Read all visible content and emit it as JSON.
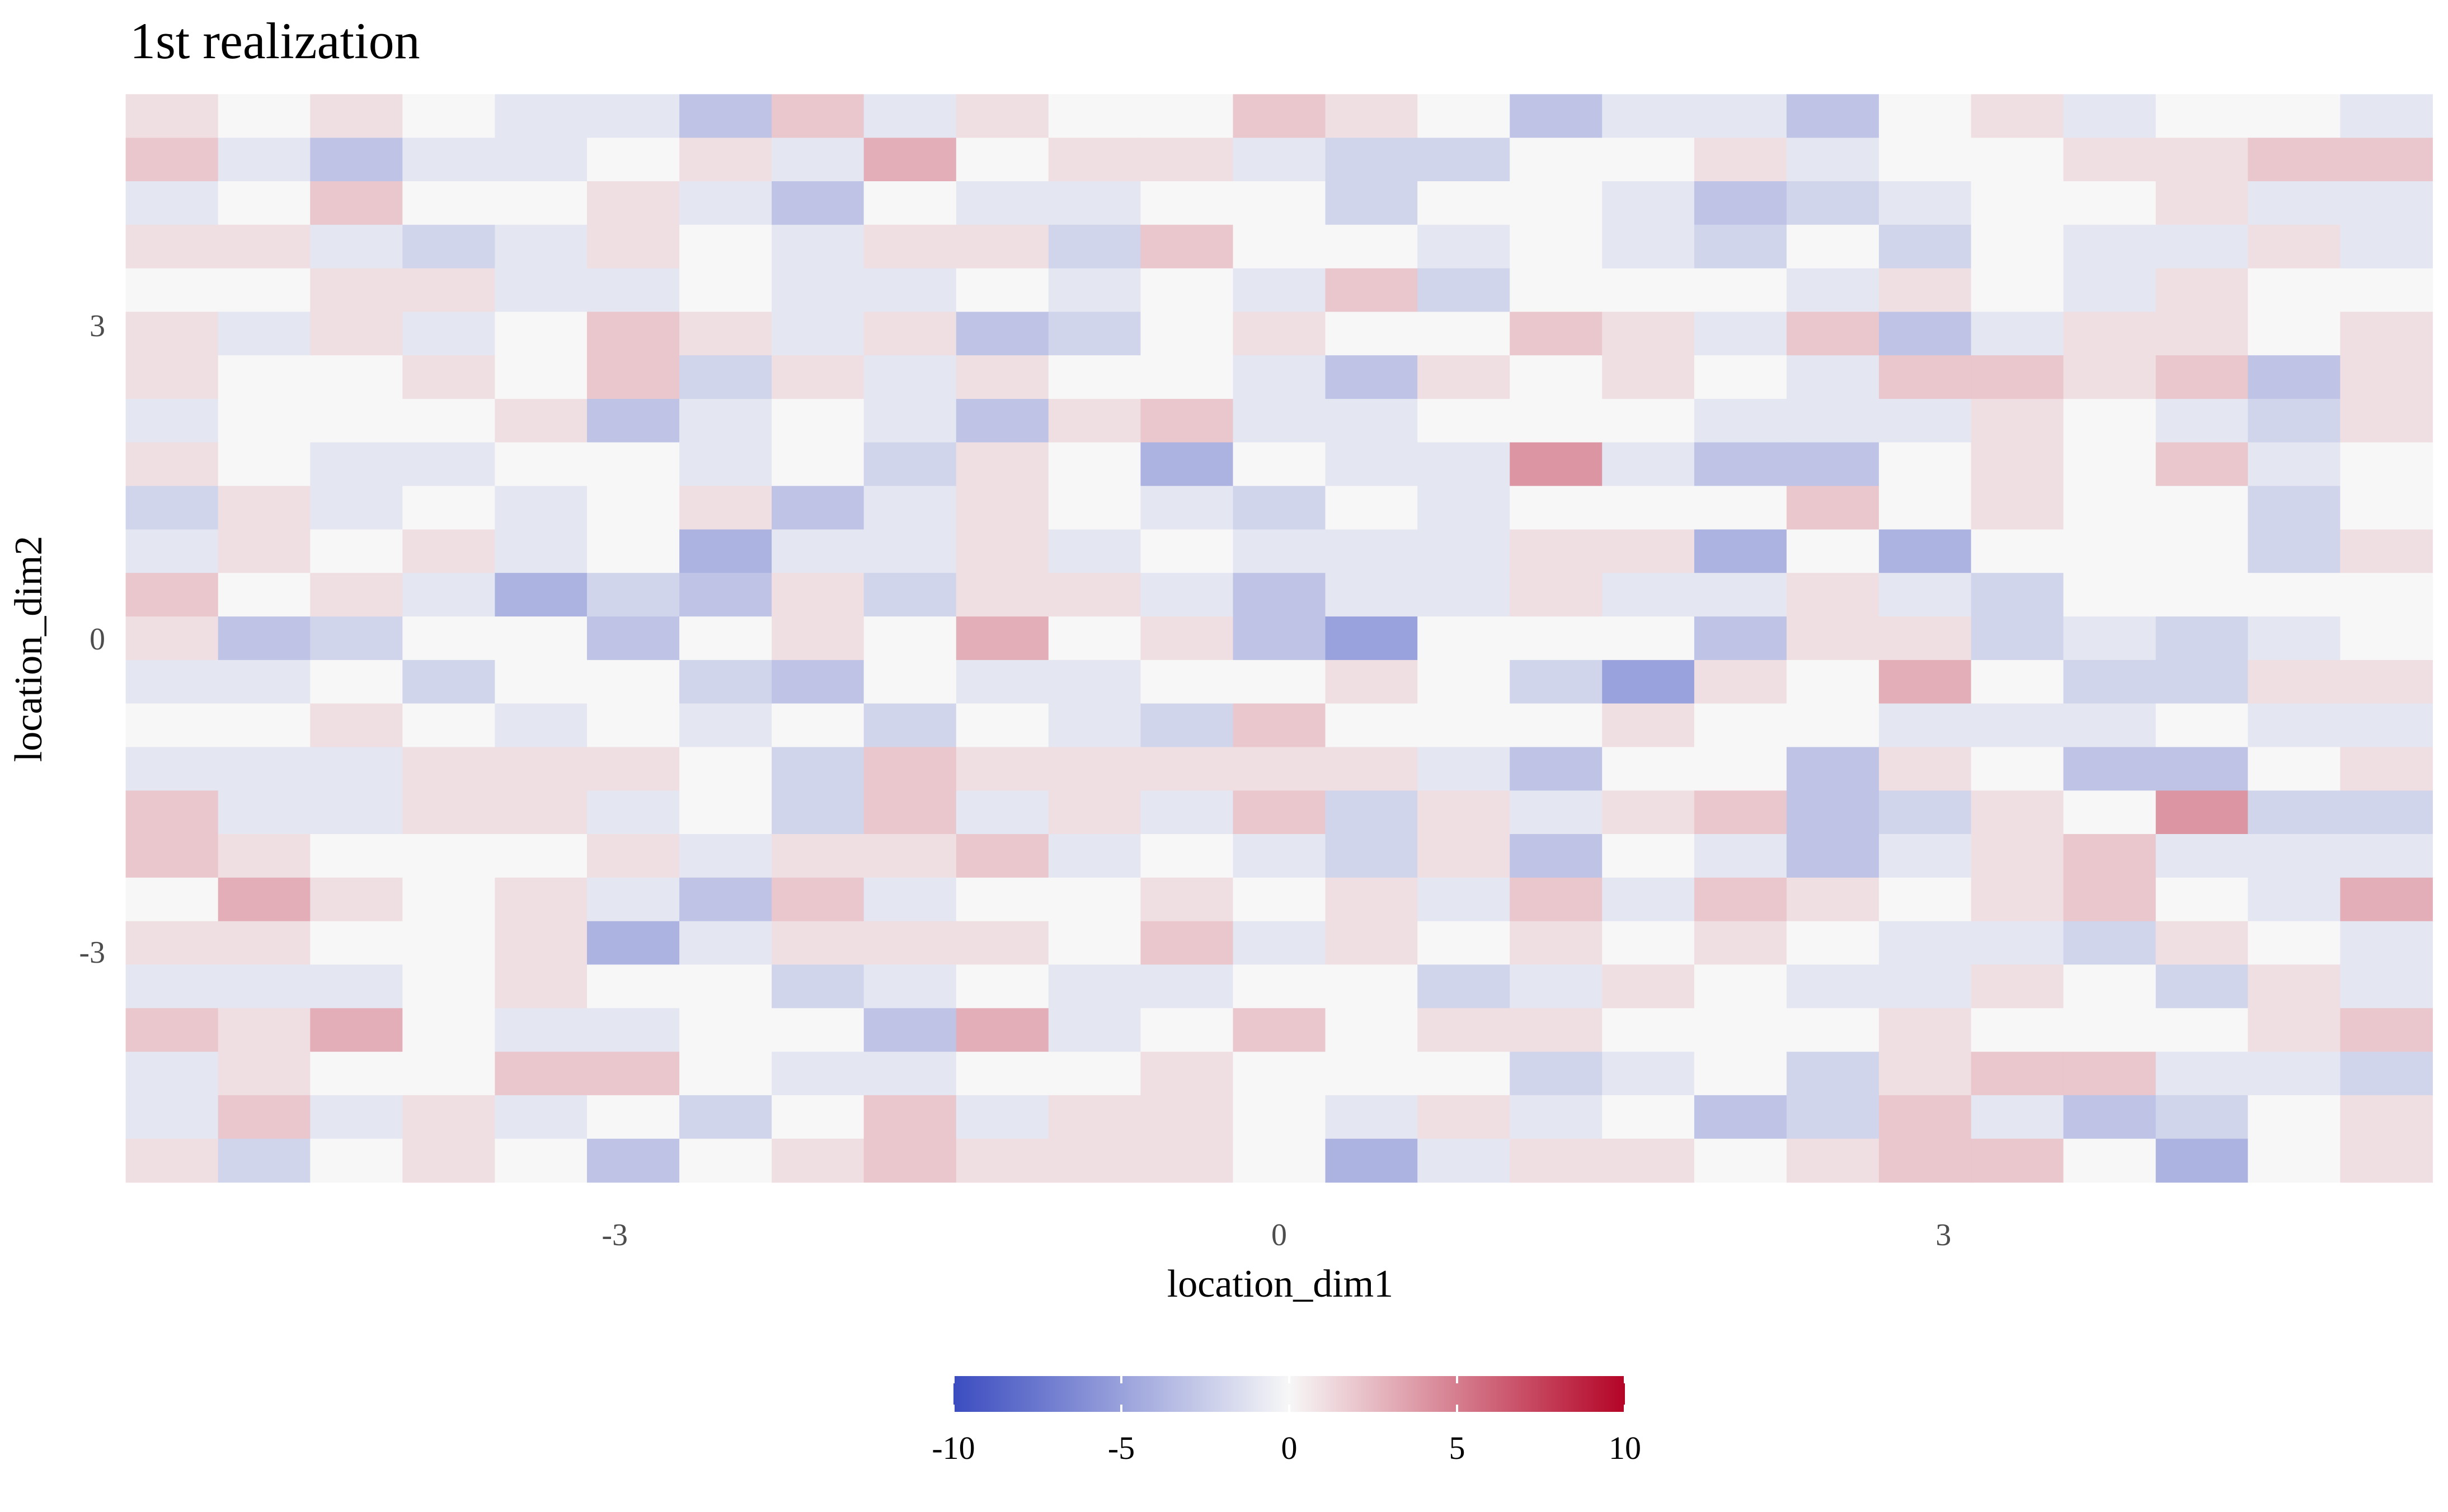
{
  "chart_data": {
    "type": "heatmap",
    "title": "1st realization",
    "xlabel": "location_dim1",
    "ylabel": "location_dim2",
    "xlim": [
      -5.2,
      5.2
    ],
    "ylim": [
      -5.2,
      5.2
    ],
    "x_ticks": [
      -3,
      0,
      3
    ],
    "y_ticks": [
      3,
      0,
      -3
    ],
    "x_tick_labels": [
      "-3",
      "0",
      "3"
    ],
    "y_tick_labels": [
      "3",
      "0",
      "-3"
    ],
    "x_centers": [
      -5.0,
      -4.583,
      -4.167,
      -3.75,
      -3.333,
      -2.917,
      -2.5,
      -2.083,
      -1.667,
      -1.25,
      -0.833,
      -0.417,
      0.0,
      0.417,
      0.833,
      1.25,
      1.667,
      2.083,
      2.5,
      2.917,
      3.333,
      3.75,
      4.167,
      4.583,
      5.0
    ],
    "y_centers": [
      5.0,
      4.583,
      4.167,
      3.75,
      3.333,
      2.917,
      2.5,
      2.083,
      1.667,
      1.25,
      0.833,
      0.417,
      0.0,
      -0.417,
      -0.833,
      -1.25,
      -1.667,
      -2.083,
      -2.5,
      -2.917,
      -3.333,
      -3.75,
      -4.167,
      -4.583,
      -5.0
    ],
    "cell_size": 0.417,
    "values": [
      [
        1,
        0,
        1,
        0,
        -1,
        -1,
        -3,
        2,
        -1,
        1,
        0,
        0,
        2,
        1,
        0,
        -3,
        -1,
        -1,
        -3,
        0,
        1,
        -1,
        0,
        0,
        -1
      ],
      [
        2,
        -1,
        -3,
        -1,
        -1,
        0,
        1,
        -1,
        3,
        0,
        1,
        1,
        -1,
        -2,
        -2,
        0,
        0,
        1,
        -1,
        0,
        0,
        1,
        1,
        2,
        2
      ],
      [
        -1,
        0,
        2,
        0,
        0,
        1,
        -1,
        -3,
        0,
        -1,
        -1,
        0,
        0,
        -2,
        0,
        0,
        -1,
        -3,
        -2,
        -1,
        0,
        0,
        1,
        -1,
        -1
      ],
      [
        1,
        1,
        -1,
        -2,
        -1,
        1,
        0,
        -1,
        1,
        1,
        -2,
        2,
        0,
        0,
        -1,
        0,
        -1,
        -2,
        0,
        -2,
        0,
        -1,
        -1,
        1,
        -1
      ],
      [
        0,
        0,
        1,
        1,
        -1,
        -1,
        0,
        -1,
        -1,
        0,
        -1,
        0,
        -1,
        2,
        -2,
        0,
        0,
        0,
        -1,
        1,
        0,
        -1,
        1,
        0,
        0
      ],
      [
        1,
        -1,
        1,
        -1,
        0,
        2,
        1,
        -1,
        1,
        -3,
        -2,
        0,
        1,
        0,
        0,
        2,
        1,
        -1,
        2,
        -3,
        -1,
        1,
        1,
        0,
        1
      ],
      [
        1,
        0,
        0,
        1,
        0,
        2,
        -2,
        1,
        -1,
        1,
        0,
        0,
        -1,
        -3,
        1,
        0,
        1,
        0,
        -1,
        2,
        2,
        1,
        2,
        -3,
        1
      ],
      [
        -1,
        0,
        0,
        0,
        1,
        -3,
        -1,
        0,
        -1,
        -3,
        1,
        2,
        -1,
        -1,
        0,
        0,
        0,
        -1,
        -1,
        -1,
        1,
        0,
        -1,
        -2,
        1
      ],
      [
        1,
        0,
        -1,
        -1,
        0,
        0,
        -1,
        0,
        -2,
        1,
        0,
        -4,
        0,
        -1,
        -1,
        4,
        -1,
        -3,
        -3,
        0,
        1,
        0,
        2,
        -1,
        0
      ],
      [
        -2,
        1,
        -1,
        0,
        -1,
        0,
        1,
        -3,
        -1,
        1,
        0,
        -1,
        -2,
        0,
        -1,
        0,
        0,
        0,
        2,
        0,
        1,
        0,
        0,
        -2,
        0
      ],
      [
        -1,
        1,
        0,
        1,
        -1,
        0,
        -4,
        -1,
        -1,
        1,
        -1,
        0,
        -1,
        -1,
        -1,
        1,
        1,
        -4,
        0,
        -4,
        0,
        0,
        0,
        -2,
        1
      ],
      [
        2,
        0,
        1,
        -1,
        -4,
        -2,
        -3,
        1,
        -2,
        1,
        1,
        -1,
        -3,
        -1,
        -1,
        1,
        -1,
        -1,
        1,
        -1,
        -2,
        0,
        0,
        0,
        0
      ],
      [
        1,
        -3,
        -2,
        0,
        0,
        -3,
        0,
        1,
        0,
        3,
        0,
        1,
        -3,
        -5,
        0,
        0,
        0,
        -3,
        1,
        1,
        -2,
        -1,
        -2,
        -1,
        0
      ],
      [
        -1,
        -1,
        0,
        -2,
        0,
        0,
        -2,
        -3,
        0,
        -1,
        -1,
        0,
        0,
        1,
        0,
        -2,
        -5,
        1,
        0,
        3,
        0,
        -2,
        -2,
        1,
        1
      ],
      [
        0,
        0,
        1,
        0,
        -1,
        0,
        -1,
        0,
        -2,
        0,
        -1,
        -2,
        2,
        0,
        0,
        0,
        1,
        0,
        0,
        -1,
        -1,
        -1,
        0,
        -1,
        -1
      ],
      [
        -1,
        -1,
        -1,
        1,
        1,
        1,
        0,
        -2,
        2,
        1,
        1,
        1,
        1,
        1,
        -1,
        -3,
        0,
        0,
        -3,
        1,
        0,
        -3,
        -3,
        0,
        1
      ],
      [
        2,
        -1,
        -1,
        1,
        1,
        -1,
        0,
        -2,
        2,
        -1,
        1,
        -1,
        2,
        -2,
        1,
        -1,
        1,
        2,
        -3,
        -2,
        1,
        0,
        4,
        -2,
        -2
      ],
      [
        2,
        1,
        0,
        0,
        0,
        1,
        -1,
        1,
        1,
        2,
        -1,
        0,
        -1,
        -2,
        1,
        -3,
        0,
        -1,
        -3,
        -1,
        1,
        2,
        -1,
        -1,
        -1
      ],
      [
        0,
        3,
        1,
        0,
        1,
        -1,
        -3,
        2,
        -1,
        0,
        0,
        1,
        0,
        1,
        -1,
        2,
        -1,
        2,
        1,
        0,
        1,
        2,
        0,
        -1,
        3
      ],
      [
        1,
        1,
        0,
        0,
        1,
        -4,
        -1,
        1,
        1,
        1,
        0,
        2,
        -1,
        1,
        0,
        1,
        0,
        1,
        0,
        -1,
        -1,
        -2,
        1,
        0,
        -1
      ],
      [
        -1,
        -1,
        -1,
        0,
        1,
        0,
        0,
        -2,
        -1,
        0,
        -1,
        -1,
        0,
        0,
        -2,
        -1,
        1,
        0,
        -1,
        -1,
        1,
        0,
        -2,
        1,
        -1
      ],
      [
        2,
        1,
        3,
        0,
        -1,
        -1,
        0,
        0,
        -3,
        3,
        -1,
        0,
        2,
        0,
        1,
        1,
        0,
        0,
        0,
        1,
        0,
        0,
        0,
        1,
        2
      ],
      [
        -1,
        1,
        0,
        0,
        2,
        2,
        0,
        -1,
        -1,
        0,
        0,
        1,
        0,
        0,
        0,
        -2,
        -1,
        0,
        -2,
        1,
        2,
        2,
        -1,
        -1,
        -2
      ],
      [
        -1,
        2,
        -1,
        1,
        -1,
        0,
        -2,
        0,
        2,
        -1,
        1,
        1,
        0,
        -1,
        1,
        -1,
        0,
        -3,
        -2,
        2,
        -1,
        -3,
        -2,
        0,
        1
      ],
      [
        1,
        -2,
        0,
        1,
        0,
        -3,
        0,
        1,
        2,
        1,
        1,
        1,
        0,
        -4,
        -1,
        1,
        1,
        0,
        1,
        2,
        2,
        0,
        -4,
        0,
        1
      ]
    ],
    "colorbar": {
      "min": -10,
      "max": 10,
      "low_color": "#3b4cc0",
      "mid_color": "#f7f7f7",
      "high_color": "#b40426",
      "ticks": [
        -10,
        -5,
        0,
        5,
        10
      ],
      "tick_labels": [
        "-10",
        "-5",
        "0",
        "5",
        "10"
      ],
      "position": "bottom"
    },
    "grid": true
  }
}
